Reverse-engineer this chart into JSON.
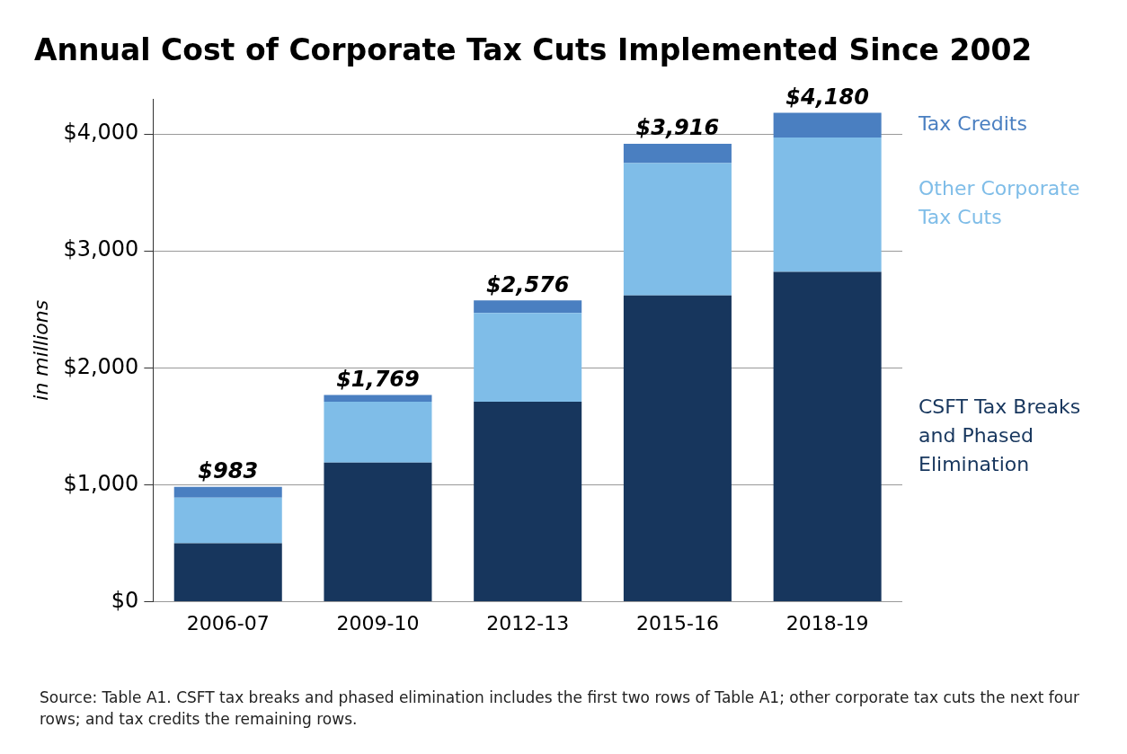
{
  "chart_data": {
    "type": "bar",
    "title": "Annual Cost of Corporate Tax Cuts Implemented Since 2002",
    "ylabel": "in millions",
    "categories": [
      "2006-07",
      "2009-10",
      "2012-13",
      "2015-16",
      "2018-19"
    ],
    "stacked": true,
    "series": [
      {
        "name": "CSFT Tax Breaks and Phased Elimination",
        "color": "#17365d",
        "values": [
          500,
          1190,
          1710,
          2620,
          2820
        ]
      },
      {
        "name": "Other Corporate Tax Cuts",
        "color": "#7fbde8",
        "values": [
          390,
          520,
          760,
          1130,
          1150
        ]
      },
      {
        "name": "Tax Credits",
        "color": "#4a7fc1",
        "values": [
          93,
          59,
          106,
          166,
          210
        ]
      }
    ],
    "totals": [
      "$983",
      "$1,769",
      "$2,576",
      "$3,916",
      "$4,180"
    ],
    "ylim": [
      0,
      4300
    ],
    "yticks": [
      {
        "value": 0,
        "label": "$0"
      },
      {
        "value": 1000,
        "label": "$1,000"
      },
      {
        "value": 2000,
        "label": "$2,000"
      },
      {
        "value": 3000,
        "label": "$3,000"
      },
      {
        "value": 4000,
        "label": "$4,000"
      }
    ],
    "grid": "y",
    "legend": "right",
    "annotations": [
      "Source: Table A1. CSFT tax breaks and phased elimination includes the first two rows of Table A1; other corporate tax cuts the next four rows; and tax credits the remaining rows."
    ]
  }
}
